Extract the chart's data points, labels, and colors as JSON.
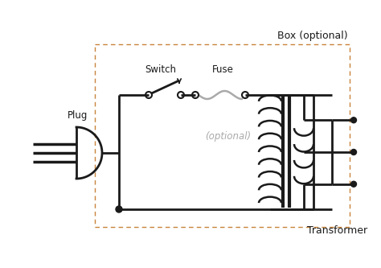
{
  "bg_color": "#ffffff",
  "line_color": "#1a1a1a",
  "fuse_color": "#aaaaaa",
  "optional_text_color": "#aaaaaa",
  "box_color": "#c8843c",
  "title": "Box (optional)",
  "plug_label": "Plug",
  "switch_label": "Switch",
  "fuse_label": "Fuse",
  "optional_label": "(optional)",
  "transformer_label": "Transformer",
  "figsize": [
    4.74,
    3.33
  ],
  "dpi": 100
}
